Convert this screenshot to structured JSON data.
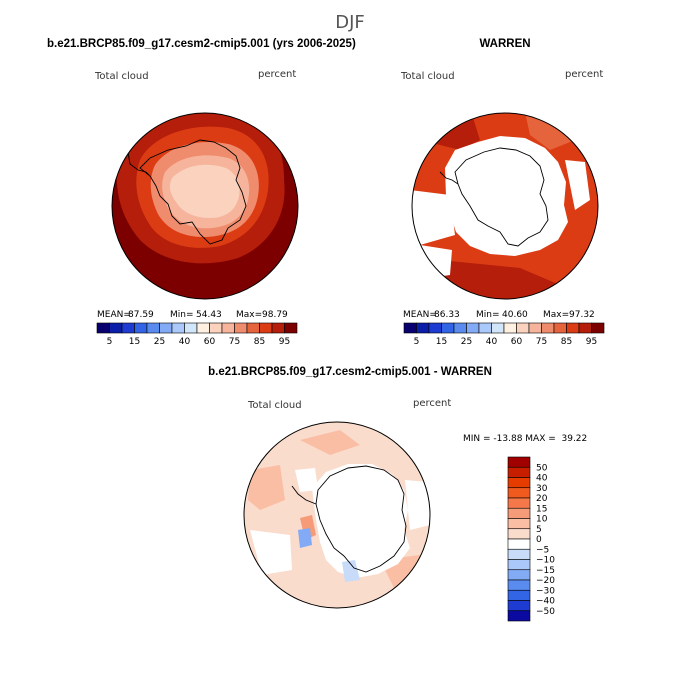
{
  "super_title": "DJF",
  "chart_data": [
    {
      "type": "heatmap",
      "projection": "south-polar-stereographic",
      "title": "b.e21.BRCP85.f09_g17.cesm2-cmip5.001 (yrs 2006-2025)",
      "variable": "Total cloud",
      "units": "percent",
      "stats": {
        "mean_label": "MEAN=",
        "mean": "87.59",
        "min_label": "Min=",
        "min": "54.43",
        "max_label": "Max=",
        "max": "98.79"
      },
      "colorbar": {
        "orientation": "horizontal",
        "levels": [
          5,
          10,
          15,
          20,
          25,
          30,
          40,
          50,
          60,
          70,
          75,
          80,
          85,
          90,
          95
        ],
        "tick_labels": [
          "5",
          "15",
          "25",
          "40",
          "60",
          "75",
          "85",
          "95"
        ],
        "colors": [
          "#08006e",
          "#0a1ea8",
          "#1e3cd2",
          "#3264e6",
          "#5a8cf0",
          "#82aaf5",
          "#aac8fa",
          "#d2e6fa",
          "#fff0e1",
          "#fad2be",
          "#f5b49b",
          "#f08c6e",
          "#e6643c",
          "#dc3c14",
          "#b41e0a",
          "#7d0000"
        ]
      }
    },
    {
      "type": "heatmap",
      "projection": "south-polar-stereographic",
      "title": "WARREN",
      "variable": "Total cloud",
      "units": "percent",
      "stats": {
        "mean_label": "MEAN=",
        "mean": "86.33",
        "min_label": "Min=",
        "min": "40.60",
        "max_label": "Max=",
        "max": "97.32"
      },
      "colorbar": {
        "orientation": "horizontal",
        "levels": [
          5,
          10,
          15,
          20,
          25,
          30,
          40,
          50,
          60,
          70,
          75,
          80,
          85,
          90,
          95
        ],
        "tick_labels": [
          "5",
          "15",
          "25",
          "40",
          "60",
          "75",
          "85",
          "95"
        ],
        "colors": [
          "#08006e",
          "#0a1ea8",
          "#1e3cd2",
          "#3264e6",
          "#5a8cf0",
          "#82aaf5",
          "#aac8fa",
          "#d2e6fa",
          "#fff0e1",
          "#fad2be",
          "#f5b49b",
          "#f08c6e",
          "#e6643c",
          "#dc3c14",
          "#b41e0a",
          "#7d0000"
        ]
      }
    },
    {
      "type": "heatmap",
      "projection": "south-polar-stereographic",
      "title": "b.e21.BRCP85.f09_g17.cesm2-cmip5.001 - WARREN",
      "variable": "Total cloud",
      "units": "percent",
      "stats_text": "MIN = -13.88 MAX =  39.22",
      "colorbar": {
        "orientation": "vertical",
        "levels": [
          -50,
          -40,
          -30,
          -20,
          -15,
          -10,
          -5,
          0,
          5,
          10,
          15,
          20,
          30,
          40,
          50
        ],
        "tick_labels": [
          "50",
          "40",
          "30",
          "20",
          "15",
          "10",
          "5",
          "0",
          "−5",
          "−10",
          "−15",
          "−20",
          "−30",
          "−40",
          "−50"
        ],
        "colors": [
          "#a00000",
          "#c81e00",
          "#e63c00",
          "#f05a1e",
          "#f5784b",
          "#f59b78",
          "#fabea5",
          "#fadccd",
          "#ffffff",
          "#c8dcfa",
          "#aac8fa",
          "#82aaf5",
          "#5a8cf0",
          "#3264e6",
          "#1e3cd2",
          "#0a0aa0"
        ]
      }
    }
  ]
}
